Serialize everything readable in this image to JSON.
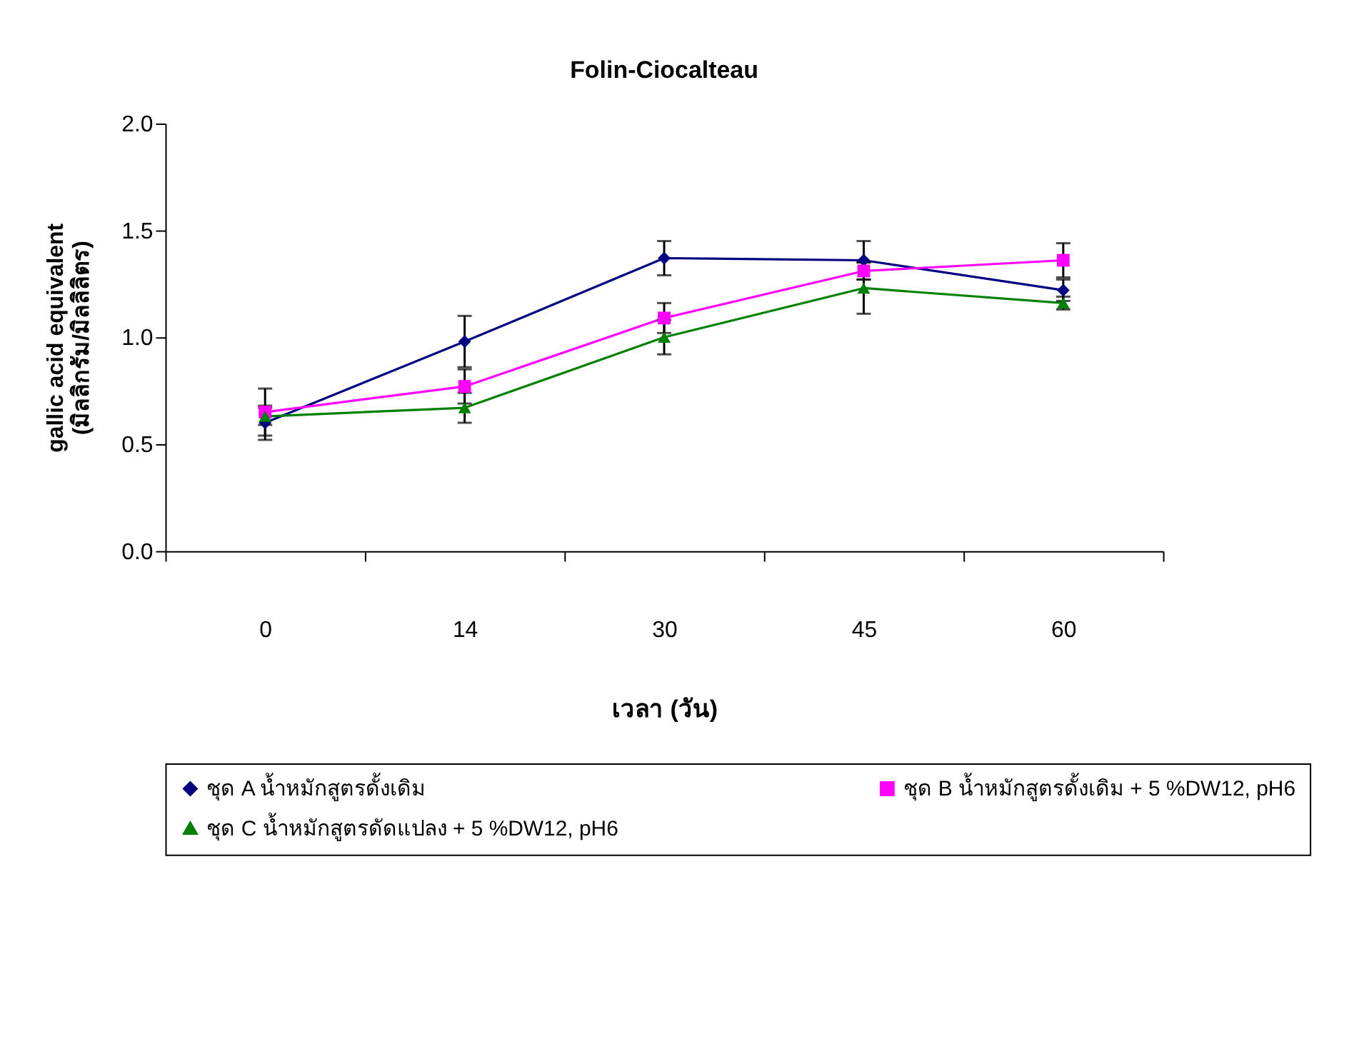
{
  "chart_data": {
    "type": "line",
    "title": "Folin-Ciocalteau",
    "xlabel": "เวลา (วัน)",
    "ylabel": "gallic acid equivalent\n(มิลลิกรัม/มิลลิลิตร)",
    "categories": [
      "0",
      "14",
      "30",
      "45",
      "60"
    ],
    "ylim": [
      0,
      2
    ],
    "yticks": [
      {
        "value": 0,
        "label": "0.0"
      },
      {
        "value": 0.5,
        "label": "0.5"
      },
      {
        "value": 1,
        "label": "1.0"
      },
      {
        "value": 1.5,
        "label": "1.5"
      },
      {
        "value": 2,
        "label": "2.0"
      }
    ],
    "grid": false,
    "legend": "bottom",
    "line_style": "solid",
    "series": [
      {
        "name": "ชุด A น้ำหมักสูตรดั้งเดิม",
        "color": "#000080",
        "marker": "diamond",
        "values": [
          0.6,
          0.98,
          1.37,
          1.36,
          1.22
        ],
        "errors": [
          0.08,
          0.12,
          0.08,
          0.09,
          0.05
        ]
      },
      {
        "name": "ชุด B น้ำหมักสูตรดั้งเดิม + 5 %DW12, pH6",
        "color": "#ff00ff",
        "marker": "square",
        "values": [
          0.65,
          0.77,
          1.09,
          1.31,
          1.36
        ],
        "errors": [
          0.11,
          0.08,
          0.07,
          0.04,
          0.08
        ]
      },
      {
        "name": "ชุด C น้ำหมักสูตรดัดแปลง + 5 %DW12, pH6",
        "color": "#008000",
        "marker": "triangle",
        "values": [
          0.63,
          0.67,
          1.0,
          1.23,
          1.16
        ],
        "errors": [
          0.04,
          0.07,
          0.08,
          0.12,
          0.03
        ]
      }
    ]
  }
}
